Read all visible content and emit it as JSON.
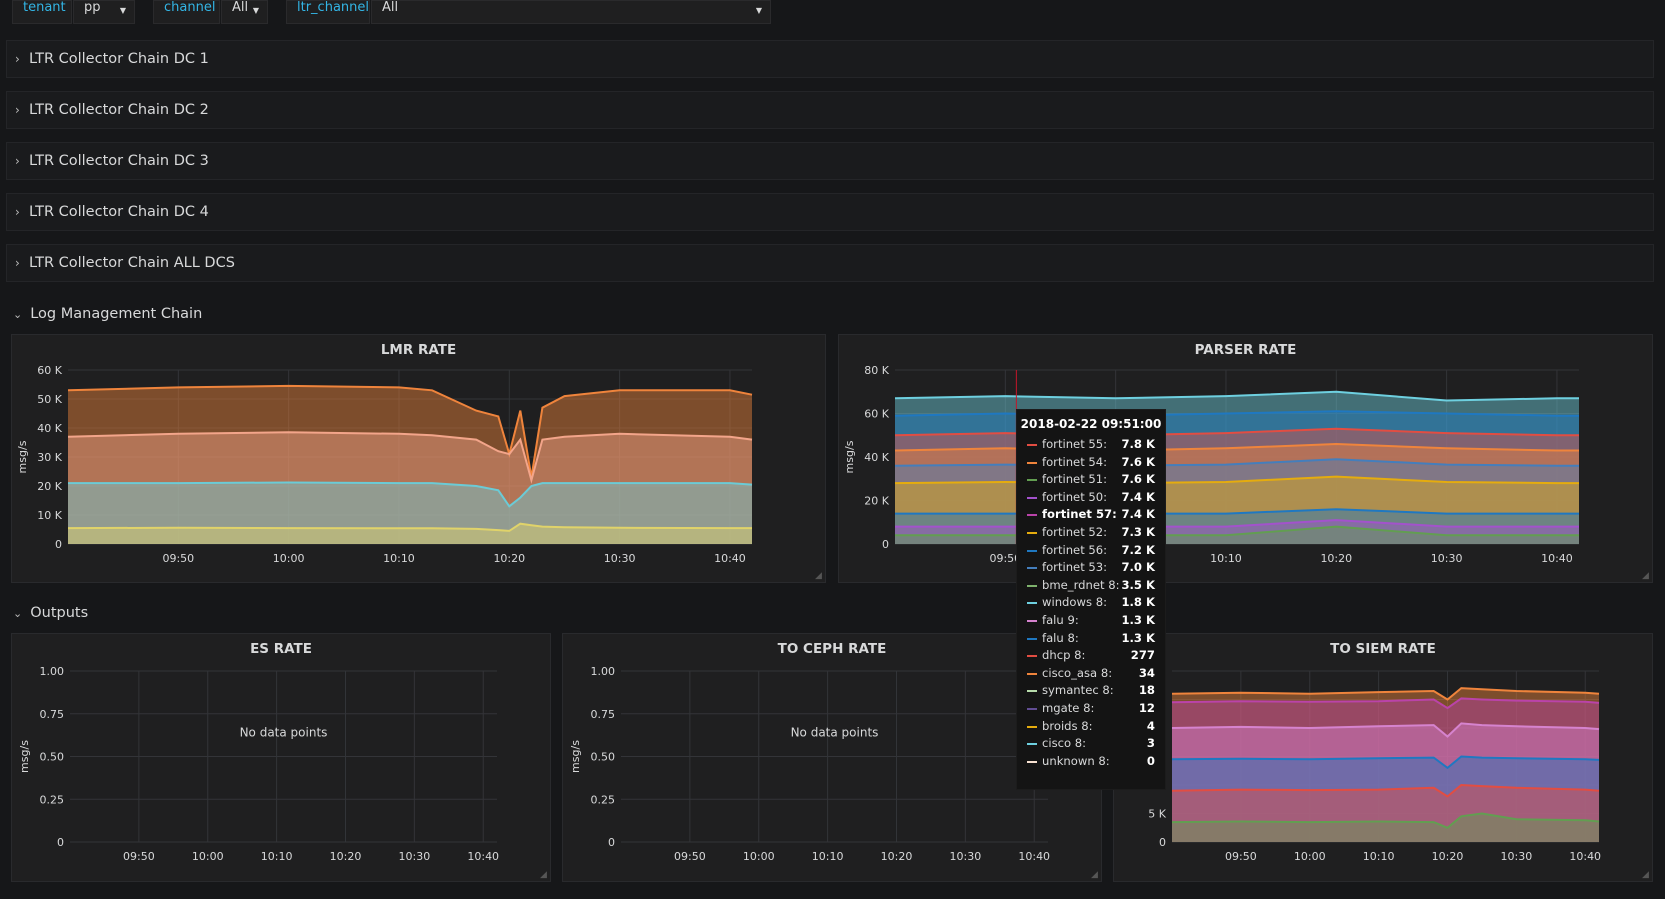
{
  "variables": [
    {
      "label": "tenant",
      "value": "pp"
    },
    {
      "label": "channel",
      "value": "All"
    },
    {
      "label": "ltr_channel",
      "value": "All"
    }
  ],
  "collapsed_rows": [
    "LTR Collector Chain DC 1",
    "LTR Collector Chain DC 2",
    "LTR Collector Chain DC 3",
    "LTR Collector Chain DC 4",
    "LTR Collector Chain ALL DCS"
  ],
  "sections": {
    "log_management": "Log Management Chain",
    "outputs": "Outputs"
  },
  "colors": {
    "background": "#161719",
    "panel": "#1f1f20",
    "accent_label": "#33b5e5",
    "grid": "#333438"
  },
  "chart_data": [
    {
      "name": "lmr",
      "type": "area",
      "title": "LMR RATE",
      "ylabel": "msg/s",
      "ylim": [
        0,
        60000
      ],
      "yticks": [
        "0",
        "10 K",
        "20 K",
        "30 K",
        "40 K",
        "50 K",
        "60 K"
      ],
      "xticks": [
        "09:50",
        "10:00",
        "10:10",
        "10:20",
        "10:30",
        "10:40"
      ],
      "x": [
        "09:40",
        "09:50",
        "10:00",
        "10:10",
        "10:13",
        "10:17",
        "10:19",
        "10:20",
        "10:21",
        "10:22",
        "10:23",
        "10:25",
        "10:30",
        "10:40",
        "10:42"
      ],
      "series": [
        {
          "color": "#e0d36a",
          "values": [
            5500,
            5600,
            5500,
            5400,
            5400,
            5200,
            4800,
            4500,
            7000,
            6500,
            6000,
            5800,
            5600,
            5500,
            5500
          ]
        },
        {
          "color": "#6bcbd6",
          "values": [
            21000,
            21000,
            21200,
            21000,
            21000,
            20000,
            18500,
            13000,
            16000,
            20000,
            21000,
            21000,
            21000,
            21000,
            20500
          ]
        },
        {
          "color": "#f3a58a",
          "values": [
            37000,
            38000,
            38500,
            38000,
            37500,
            36000,
            32000,
            31000,
            36000,
            22000,
            36000,
            37000,
            38000,
            37000,
            36000
          ]
        },
        {
          "color": "#ef843c",
          "values": [
            53000,
            54000,
            54500,
            54000,
            53000,
            46000,
            44000,
            31000,
            46000,
            23000,
            47000,
            51000,
            53000,
            53000,
            51500
          ]
        }
      ]
    },
    {
      "name": "parser",
      "type": "area",
      "title": "PARSER RATE",
      "ylabel": "msg/s",
      "ylim": [
        0,
        80000
      ],
      "yticks": [
        "0",
        "20 K",
        "40 K",
        "60 K",
        "80 K"
      ],
      "xticks": [
        "09:50",
        "10:00",
        "10:10",
        "10:20",
        "10:30",
        "10:40"
      ],
      "x": [
        "09:40",
        "09:50",
        "10:00",
        "10:10",
        "10:20",
        "10:30",
        "10:40",
        "10:42"
      ],
      "series": [
        {
          "color": "#629e51",
          "values": [
            4000,
            4000,
            4000,
            4000,
            8000,
            4000,
            4000,
            4000
          ]
        },
        {
          "color": "#a352cc",
          "values": [
            8000,
            8000,
            8000,
            8000,
            11000,
            8000,
            8000,
            8000
          ]
        },
        {
          "color": "#1f78c1",
          "values": [
            14000,
            14000,
            14000,
            14000,
            16000,
            14000,
            14000,
            14000
          ]
        },
        {
          "color": "#e5ac0e",
          "values": [
            28000,
            28500,
            28000,
            28500,
            31000,
            28500,
            28000,
            28000
          ]
        },
        {
          "color": "#447ebc",
          "values": [
            36000,
            36500,
            36000,
            36500,
            39000,
            36500,
            36000,
            36000
          ]
        },
        {
          "color": "#ef843c",
          "values": [
            43000,
            44000,
            43000,
            44000,
            46000,
            44000,
            43000,
            43000
          ]
        },
        {
          "color": "#e24d42",
          "values": [
            50000,
            51000,
            50000,
            51000,
            53000,
            51000,
            50000,
            50000
          ]
        },
        {
          "color": "#1f78c1",
          "values": [
            59000,
            60000,
            59000,
            60000,
            61000,
            60000,
            59000,
            59000
          ]
        },
        {
          "color": "#6ed0e0",
          "values": [
            67000,
            68000,
            67000,
            68000,
            70000,
            66000,
            67000,
            67000
          ]
        }
      ]
    },
    {
      "name": "es",
      "type": "line",
      "title": "ES RATE",
      "ylabel": "msg/s",
      "ylim": [
        0,
        1
      ],
      "yticks": [
        "0",
        "0.25",
        "0.50",
        "0.75",
        "1.00"
      ],
      "xticks": [
        "09:50",
        "10:00",
        "10:10",
        "10:20",
        "10:30",
        "10:40"
      ],
      "empty_text": "No data points",
      "series": []
    },
    {
      "name": "ceph",
      "type": "line",
      "title": "TO CEPH RATE",
      "ylabel": "msg/s",
      "ylim": [
        0,
        1
      ],
      "yticks": [
        "0",
        "0.25",
        "0.50",
        "0.75",
        "1.00"
      ],
      "xticks": [
        "09:50",
        "10:00",
        "10:10",
        "10:20",
        "10:30",
        "10:40"
      ],
      "empty_text": "No data points",
      "series": []
    },
    {
      "name": "siem",
      "type": "area",
      "title": "TO SIEM RATE",
      "ylabel": "",
      "ylim": [
        0,
        30000
      ],
      "yticks": [
        "0",
        "5 K"
      ],
      "xticks": [
        "09:50",
        "10:00",
        "10:10",
        "10:20",
        "10:30",
        "10:40"
      ],
      "x": [
        "09:40",
        "09:50",
        "10:00",
        "10:10",
        "10:18",
        "10:20",
        "10:22",
        "10:25",
        "10:30",
        "10:40",
        "10:42"
      ],
      "series": [
        {
          "color": "#629e51",
          "values": [
            3500,
            3600,
            3500,
            3600,
            3500,
            2500,
            4500,
            5000,
            4000,
            3800,
            3600
          ]
        },
        {
          "color": "#e24d42",
          "values": [
            9000,
            9200,
            9100,
            9200,
            9500,
            8000,
            10000,
            9800,
            9500,
            9200,
            9000
          ]
        },
        {
          "color": "#1f78c1",
          "values": [
            14500,
            14600,
            14500,
            14700,
            14800,
            13000,
            15000,
            14800,
            14700,
            14500,
            14400
          ]
        },
        {
          "color": "#d683ce",
          "values": [
            20000,
            20200,
            20000,
            20300,
            20500,
            18500,
            20800,
            20500,
            20300,
            20000,
            19800
          ]
        },
        {
          "color": "#ba43a9",
          "values": [
            24500,
            24700,
            24600,
            24700,
            25000,
            23500,
            25200,
            25000,
            24800,
            24600,
            24400
          ]
        },
        {
          "color": "#ef843c",
          "values": [
            26000,
            26200,
            26000,
            26300,
            26500,
            25000,
            27000,
            26800,
            26500,
            26200,
            26000
          ]
        }
      ]
    }
  ],
  "tooltip": {
    "time": "2018-02-22 09:51:00",
    "rows": [
      {
        "name": "fortinet 55:",
        "value": "7.8 K",
        "color": "#e24d42"
      },
      {
        "name": "fortinet 54:",
        "value": "7.6 K",
        "color": "#ef843c"
      },
      {
        "name": "fortinet 51:",
        "value": "7.6 K",
        "color": "#629e51"
      },
      {
        "name": "fortinet 50:",
        "value": "7.4 K",
        "color": "#a352cc"
      },
      {
        "name": "fortinet 57:",
        "value": "7.4 K",
        "color": "#ba43a9",
        "highlight": true
      },
      {
        "name": "fortinet 52:",
        "value": "7.3 K",
        "color": "#e5ac0e"
      },
      {
        "name": "fortinet 56:",
        "value": "7.2 K",
        "color": "#1f78c1"
      },
      {
        "name": "fortinet 53:",
        "value": "7.0 K",
        "color": "#447ebc"
      },
      {
        "name": "bme_rdnet 8:",
        "value": "3.5 K",
        "color": "#7eb26d"
      },
      {
        "name": "windows 8:",
        "value": "1.8 K",
        "color": "#6ed0e0"
      },
      {
        "name": "falu 9:",
        "value": "1.3 K",
        "color": "#d683ce"
      },
      {
        "name": "falu 8:",
        "value": "1.3 K",
        "color": "#1f78c1"
      },
      {
        "name": "dhcp 8:",
        "value": "277",
        "color": "#e24d42"
      },
      {
        "name": "cisco_asa 8:",
        "value": "34",
        "color": "#ef843c"
      },
      {
        "name": "symantec 8:",
        "value": "18",
        "color": "#b7dbab"
      },
      {
        "name": "mgate 8:",
        "value": "12",
        "color": "#614d93"
      },
      {
        "name": "broids 8:",
        "value": "4",
        "color": "#e5ac0e"
      },
      {
        "name": "cisco 8:",
        "value": "3",
        "color": "#6ed0e0"
      },
      {
        "name": "unknown 8:",
        "value": "0",
        "color": "#f9e2d2"
      }
    ]
  }
}
